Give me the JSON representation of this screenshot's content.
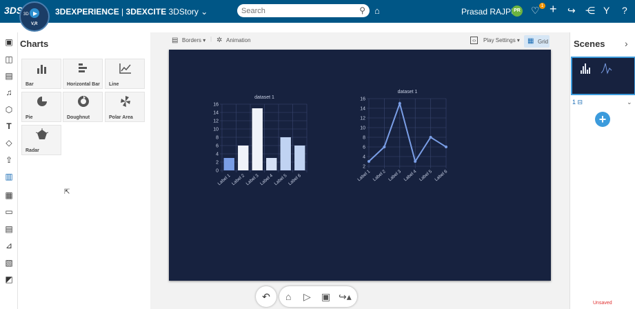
{
  "topbar": {
    "logo": "3DS",
    "brand": "3DEXPERIENCE",
    "separator": "|",
    "app": "3DEXCITE",
    "module": "3DStory",
    "search_placeholder": "Search",
    "user_name": "Prasad RAJPUT",
    "user_initials": "PR",
    "notification_count": "1",
    "compass_three": "3D",
    "compass_vr": "V,R"
  },
  "charts_panel": {
    "title": "Charts",
    "tiles": [
      {
        "label": "Bar",
        "icon": "bar-chart-icon"
      },
      {
        "label": "Horizontal Bar",
        "icon": "horizontal-bar-chart-icon"
      },
      {
        "label": "Line",
        "icon": "line-chart-icon"
      },
      {
        "label": "Pie",
        "icon": "pie-chart-icon"
      },
      {
        "label": "Doughnut",
        "icon": "doughnut-chart-icon"
      },
      {
        "label": "Polar Area",
        "icon": "polar-area-chart-icon"
      },
      {
        "label": "Radar",
        "icon": "radar-chart-icon"
      }
    ]
  },
  "workspace_toolbar": {
    "borders": "Borders",
    "animation": "Animation",
    "play_settings": "Play Settings",
    "grid": "Grid"
  },
  "chart_data": [
    {
      "type": "bar",
      "title": "dataset 1",
      "categories": [
        "Label 1",
        "Label 2",
        "Label 3",
        "Label 4",
        "Label 5",
        "Label 6"
      ],
      "values": [
        3,
        6,
        15,
        3,
        8,
        6
      ],
      "colors": [
        "#7a9ee6",
        "#f0f3fa",
        "#f0f3fa",
        "#d5e0f5",
        "#c0d3f2",
        "#c0d3f2"
      ],
      "ylim": [
        0,
        16
      ],
      "yticks": [
        0,
        2,
        4,
        6,
        8,
        10,
        12,
        14,
        16
      ],
      "grid": true
    },
    {
      "type": "line",
      "title": "dataset 1",
      "categories": [
        "Label 1",
        "Label 2",
        "Label 3",
        "Label 4",
        "Label 5",
        "Label 6"
      ],
      "values": [
        3,
        6,
        15,
        3,
        8,
        6
      ],
      "line_color": "#7a9ee6",
      "ylim": [
        2,
        16
      ],
      "yticks": [
        2,
        4,
        6,
        8,
        10,
        12,
        14,
        16
      ],
      "grid": true
    }
  ],
  "scenes_panel": {
    "title": "Scenes",
    "scene_number": "1",
    "unsaved": "Unsaved"
  },
  "colors": {
    "topbar": "#005686",
    "canvas": "#17223f",
    "accent": "#3c9bdc",
    "unsaved": "#e03030"
  }
}
